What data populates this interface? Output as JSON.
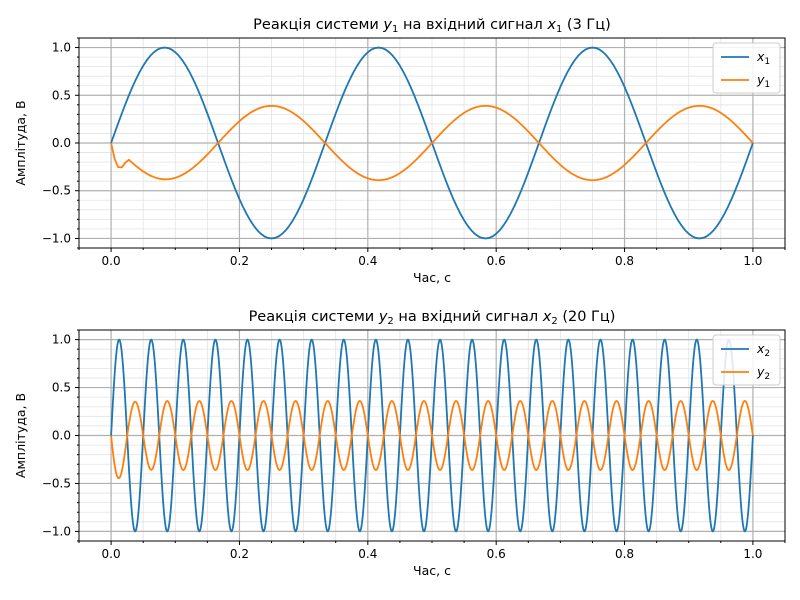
{
  "chart_data": [
    {
      "type": "line",
      "title_prefix": "Реакція системи ",
      "title_var": "y",
      "title_sub": "1",
      "title_mid": " на вхідний сигнал ",
      "title_var2": "x",
      "title_sub2": "1",
      "title_suffix": " (3 Гц)",
      "xlabel": "Час, с",
      "ylabel": "Амплітуда, В",
      "xlim": [
        -0.05,
        1.05
      ],
      "ylim": [
        -1.1,
        1.1
      ],
      "xticks": [
        "0.0",
        "0.2",
        "0.4",
        "0.6",
        "0.8",
        "1.0"
      ],
      "yticks": [
        "−1.0",
        "−0.5",
        "0.0",
        "0.5",
        "1.0"
      ],
      "grid": "major+minor",
      "legend_position": "top-right",
      "series": [
        {
          "name": "x",
          "sub": "1",
          "color": "#1f77b4",
          "frequency_hz": 3,
          "amplitude": 1.0,
          "x_range": [
            0,
            1
          ]
        },
        {
          "name": "y",
          "sub": "1",
          "color": "#ff7f0e",
          "frequency_hz": 3,
          "amplitude": 0.39,
          "x_range": [
            0,
            1
          ]
        }
      ]
    },
    {
      "type": "line",
      "title_prefix": "Реакція системи ",
      "title_var": "y",
      "title_sub": "2",
      "title_mid": " на вхідний сигнал ",
      "title_var2": "x",
      "title_sub2": "2",
      "title_suffix": " (20 Гц)",
      "xlabel": "Час, с",
      "ylabel": "Амплітуда, В",
      "xlim": [
        -0.05,
        1.05
      ],
      "ylim": [
        -1.1,
        1.1
      ],
      "xticks": [
        "0.0",
        "0.2",
        "0.4",
        "0.6",
        "0.8",
        "1.0"
      ],
      "yticks": [
        "−1.0",
        "−0.5",
        "0.0",
        "0.5",
        "1.0"
      ],
      "grid": "major+minor",
      "legend_position": "top-right",
      "series": [
        {
          "name": "x",
          "sub": "2",
          "color": "#1f77b4",
          "frequency_hz": 20,
          "amplitude": 1.0,
          "x_range": [
            0,
            1
          ]
        },
        {
          "name": "y",
          "sub": "2",
          "color": "#ff7f0e",
          "frequency_hz": 20,
          "amplitude": 0.36,
          "x_range": [
            0,
            1
          ]
        }
      ]
    }
  ]
}
